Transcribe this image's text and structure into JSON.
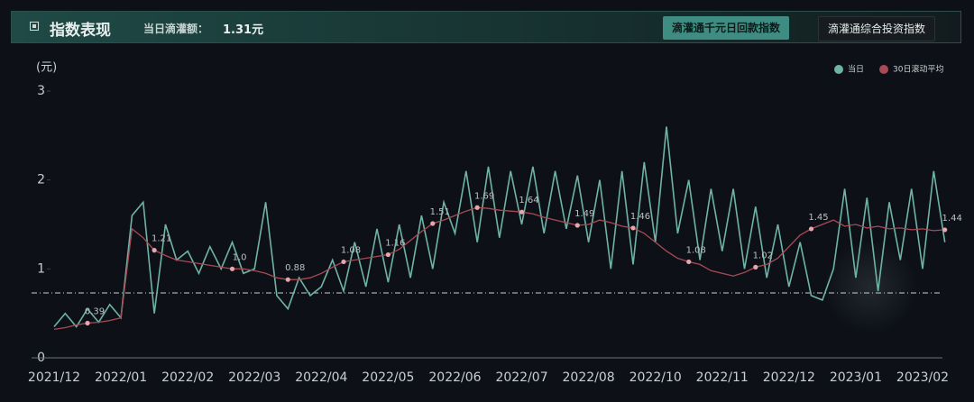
{
  "header": {
    "title": "指数表现",
    "amount_label": "当日滴灌额：",
    "amount_value": "1.31元"
  },
  "tabs": [
    "滴灌通千元日回款指数",
    "滴灌通综合投资指数"
  ],
  "chart_data": {
    "type": "line",
    "y_unit": "(元)",
    "categories": [
      "2021/12",
      null,
      null,
      null,
      null,
      null,
      "2022/01",
      null,
      null,
      null,
      null,
      null,
      "2022/02",
      null,
      null,
      null,
      null,
      null,
      "2022/03",
      null,
      null,
      null,
      null,
      null,
      "2022/04",
      null,
      null,
      null,
      null,
      null,
      "2022/05",
      null,
      null,
      null,
      null,
      null,
      "2022/06",
      null,
      null,
      null,
      null,
      null,
      "2022/07",
      null,
      null,
      null,
      null,
      null,
      "2022/08",
      null,
      null,
      null,
      null,
      null,
      "2022/10",
      null,
      null,
      null,
      null,
      null,
      "2022/11",
      null,
      null,
      null,
      null,
      null,
      "2022/12",
      null,
      null,
      null,
      null,
      null,
      "2023/01",
      null,
      null,
      null,
      null,
      null,
      "2023/02",
      null,
      null
    ],
    "series": [
      {
        "name": "当日",
        "color": "#6fb3a6",
        "values": [
          0.35,
          0.5,
          0.35,
          0.55,
          0.4,
          0.6,
          0.45,
          1.6,
          1.75,
          0.5,
          1.5,
          1.1,
          1.2,
          0.95,
          1.25,
          1.0,
          1.3,
          0.95,
          1.0,
          1.75,
          0.7,
          0.55,
          0.9,
          0.7,
          0.8,
          1.1,
          0.75,
          1.3,
          0.8,
          1.45,
          0.85,
          1.5,
          0.9,
          1.6,
          1.0,
          1.75,
          1.4,
          2.1,
          1.3,
          2.15,
          1.35,
          2.1,
          1.5,
          2.15,
          1.4,
          2.1,
          1.45,
          2.05,
          1.3,
          2.0,
          1.0,
          2.1,
          1.05,
          2.2,
          1.3,
          2.6,
          1.4,
          2.0,
          1.1,
          1.9,
          1.2,
          1.9,
          1.0,
          1.7,
          0.9,
          1.5,
          0.8,
          1.3,
          0.7,
          0.65,
          1.0,
          1.9,
          0.9,
          1.8,
          0.75,
          1.75,
          1.1,
          1.9,
          1.0,
          2.1,
          1.3
        ]
      },
      {
        "name": "30日滚动平均",
        "color": "#a84a55",
        "values": [
          0.32,
          0.34,
          0.37,
          0.39,
          0.4,
          0.42,
          0.45,
          1.45,
          1.35,
          1.21,
          1.15,
          1.1,
          1.08,
          1.06,
          1.04,
          1.02,
          1.0,
          1.0,
          0.98,
          0.95,
          0.9,
          0.88,
          0.88,
          0.9,
          0.95,
          1.02,
          1.08,
          1.1,
          1.12,
          1.14,
          1.16,
          1.22,
          1.32,
          1.42,
          1.51,
          1.55,
          1.6,
          1.65,
          1.69,
          1.68,
          1.66,
          1.65,
          1.64,
          1.62,
          1.58,
          1.55,
          1.52,
          1.49,
          1.5,
          1.55,
          1.52,
          1.48,
          1.46,
          1.4,
          1.3,
          1.2,
          1.12,
          1.08,
          1.05,
          0.98,
          0.95,
          0.92,
          0.96,
          1.02,
          1.05,
          1.12,
          1.25,
          1.38,
          1.45,
          1.5,
          1.55,
          1.48,
          1.5,
          1.46,
          1.48,
          1.45,
          1.46,
          1.44,
          1.45,
          1.43,
          1.44
        ],
        "value_labels": [
          null,
          null,
          null,
          "0.39",
          null,
          null,
          null,
          null,
          null,
          "1.21",
          null,
          null,
          null,
          null,
          null,
          null,
          "1.0",
          null,
          null,
          null,
          null,
          "0.88",
          null,
          null,
          null,
          null,
          "1.08",
          null,
          null,
          null,
          "1.16",
          null,
          null,
          null,
          "1.51",
          null,
          null,
          null,
          "1.69",
          null,
          null,
          null,
          "1.64",
          null,
          null,
          null,
          null,
          "1.49",
          null,
          null,
          null,
          null,
          "1.46",
          null,
          null,
          null,
          null,
          "1.08",
          null,
          null,
          null,
          null,
          null,
          "1.02",
          null,
          null,
          null,
          null,
          "1.45",
          null,
          null,
          null,
          null,
          null,
          null,
          null,
          null,
          null,
          null,
          null,
          "1.44"
        ]
      }
    ],
    "ylim": [
      0,
      3
    ],
    "yticks": [
      0,
      1,
      2,
      3
    ],
    "reference_line": 0.73
  }
}
